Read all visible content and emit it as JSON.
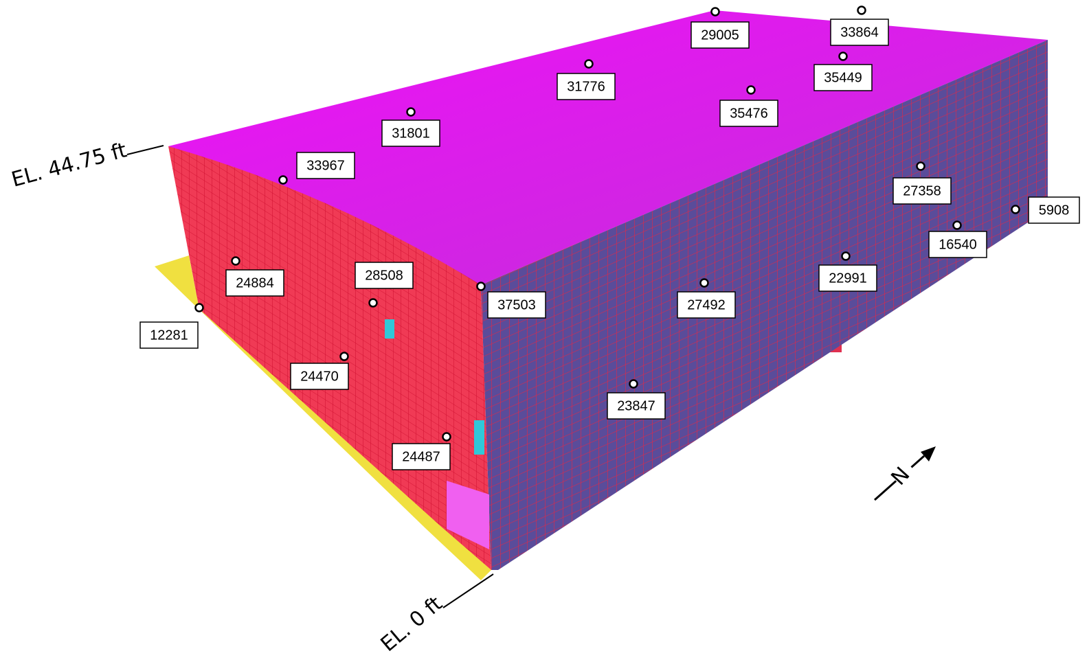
{
  "elevations": {
    "top": "EL. 44.75 ft",
    "bottom": "EL. 0 ft"
  },
  "north": "N",
  "nodes": [
    {
      "label": "29005"
    },
    {
      "label": "33864"
    },
    {
      "label": "35449"
    },
    {
      "label": "31776"
    },
    {
      "label": "35476"
    },
    {
      "label": "31801"
    },
    {
      "label": "33967"
    },
    {
      "label": "27358"
    },
    {
      "label": "5908"
    },
    {
      "label": "16540"
    },
    {
      "label": "24884"
    },
    {
      "label": "28508"
    },
    {
      "label": "37503"
    },
    {
      "label": "27492"
    },
    {
      "label": "22991"
    },
    {
      "label": "12281"
    },
    {
      "label": "24470"
    },
    {
      "label": "23847"
    },
    {
      "label": "24487"
    }
  ]
}
